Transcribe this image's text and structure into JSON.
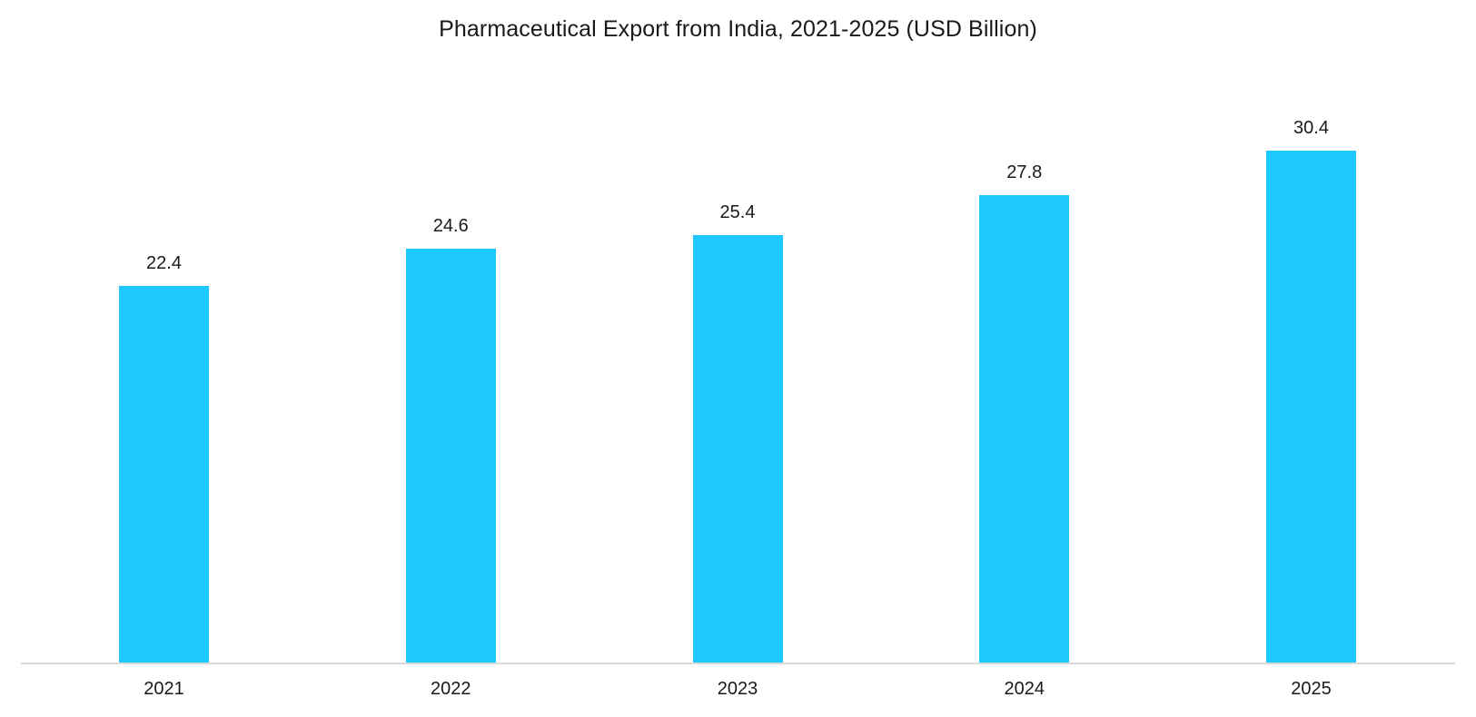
{
  "chart_data": {
    "type": "bar",
    "title": "Pharmaceutical Export from India, 2021-2025 (USD Billion)",
    "categories": [
      "2021",
      "2022",
      "2023",
      "2024",
      "2025"
    ],
    "values": [
      22.4,
      24.6,
      25.4,
      27.8,
      30.4
    ],
    "series": [
      {
        "name": "Pharmaceutical Export (USD Billion)",
        "values": [
          22.4,
          24.6,
          25.4,
          27.8,
          30.4
        ]
      }
    ],
    "value_labels": [
      "22.4",
      "24.6",
      "25.4",
      "27.8",
      "30.4"
    ],
    "xlabel": "",
    "ylabel": "",
    "ylim": [
      0,
      35
    ],
    "grid": false,
    "legend": "none",
    "y_axis_visible": false,
    "bar_color": "#1cc8fc",
    "axis_color": "#d9d9d9"
  },
  "chart": {
    "title": "Pharmaceutical Export from India, 2021-2025 (USD Billion)"
  }
}
